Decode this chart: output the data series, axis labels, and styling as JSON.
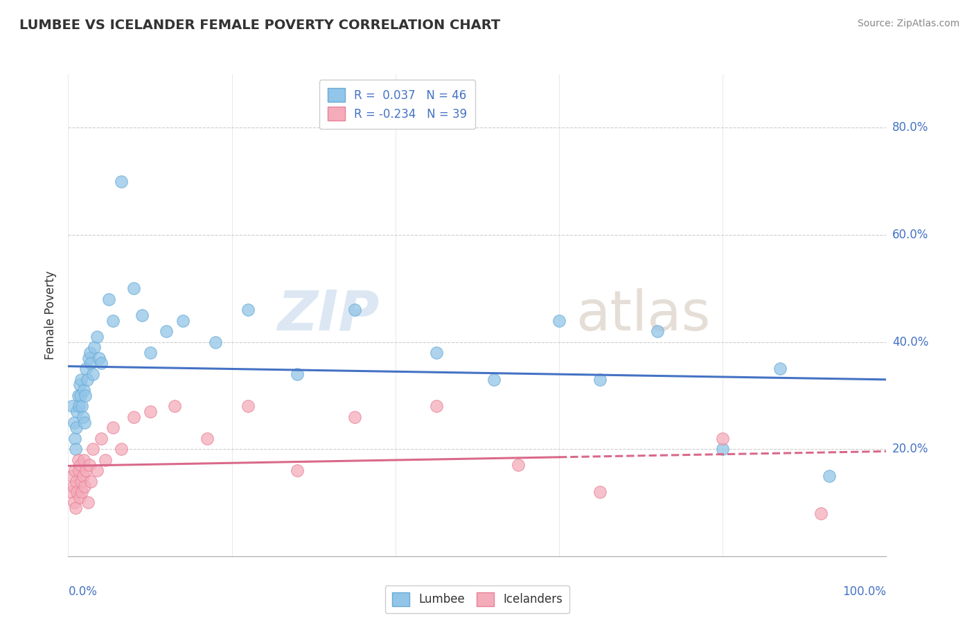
{
  "title": "LUMBEE VS ICELANDER FEMALE POVERTY CORRELATION CHART",
  "source": "Source: ZipAtlas.com",
  "ylabel": "Female Poverty",
  "lumbee_R": 0.037,
  "lumbee_N": 46,
  "icelander_R": -0.234,
  "icelander_N": 39,
  "lumbee_color": "#92C5E8",
  "lumbee_edge_color": "#6AAAD4",
  "lumbee_line_color": "#4472C4",
  "icelander_color": "#F4ACBA",
  "icelander_edge_color": "#E88099",
  "icelander_line_color": "#D9698A",
  "grid_color": "#CCCCCC",
  "watermark_zip_color": "#C8D8EC",
  "watermark_atlas_color": "#D0C8C0",
  "lumbee_x": [
    0.005,
    0.007,
    0.008,
    0.009,
    0.01,
    0.011,
    0.012,
    0.013,
    0.014,
    0.015,
    0.016,
    0.017,
    0.018,
    0.019,
    0.02,
    0.021,
    0.022,
    0.023,
    0.025,
    0.027,
    0.028,
    0.03,
    0.032,
    0.035,
    0.038,
    0.04,
    0.05,
    0.055,
    0.065,
    0.08,
    0.09,
    0.1,
    0.12,
    0.14,
    0.18,
    0.22,
    0.28,
    0.35,
    0.45,
    0.52,
    0.6,
    0.65,
    0.72,
    0.8,
    0.87,
    0.93
  ],
  "lumbee_y": [
    0.28,
    0.25,
    0.22,
    0.2,
    0.24,
    0.27,
    0.3,
    0.28,
    0.32,
    0.3,
    0.33,
    0.28,
    0.26,
    0.31,
    0.25,
    0.3,
    0.35,
    0.33,
    0.37,
    0.38,
    0.36,
    0.34,
    0.39,
    0.41,
    0.37,
    0.36,
    0.48,
    0.44,
    0.7,
    0.5,
    0.45,
    0.38,
    0.42,
    0.44,
    0.4,
    0.46,
    0.34,
    0.46,
    0.38,
    0.33,
    0.44,
    0.33,
    0.42,
    0.2,
    0.35,
    0.15
  ],
  "icelander_x": [
    0.003,
    0.005,
    0.006,
    0.007,
    0.008,
    0.009,
    0.01,
    0.011,
    0.012,
    0.013,
    0.014,
    0.015,
    0.016,
    0.017,
    0.018,
    0.019,
    0.02,
    0.022,
    0.024,
    0.026,
    0.028,
    0.03,
    0.035,
    0.04,
    0.045,
    0.055,
    0.065,
    0.08,
    0.1,
    0.13,
    0.17,
    0.22,
    0.28,
    0.35,
    0.45,
    0.55,
    0.65,
    0.8,
    0.92
  ],
  "icelander_y": [
    0.12,
    0.15,
    0.13,
    0.1,
    0.16,
    0.09,
    0.14,
    0.12,
    0.18,
    0.16,
    0.11,
    0.17,
    0.14,
    0.12,
    0.15,
    0.18,
    0.13,
    0.16,
    0.1,
    0.17,
    0.14,
    0.2,
    0.16,
    0.22,
    0.18,
    0.24,
    0.2,
    0.26,
    0.27,
    0.28,
    0.22,
    0.28,
    0.16,
    0.26,
    0.28,
    0.17,
    0.12,
    0.22,
    0.08
  ],
  "xlim": [
    0.0,
    1.0
  ],
  "ylim": [
    0.0,
    0.9
  ],
  "ytick_vals": [
    0.0,
    0.2,
    0.4,
    0.6,
    0.8
  ],
  "xtick_vals": [
    0.0,
    0.2,
    0.4,
    0.6,
    0.8,
    1.0
  ]
}
